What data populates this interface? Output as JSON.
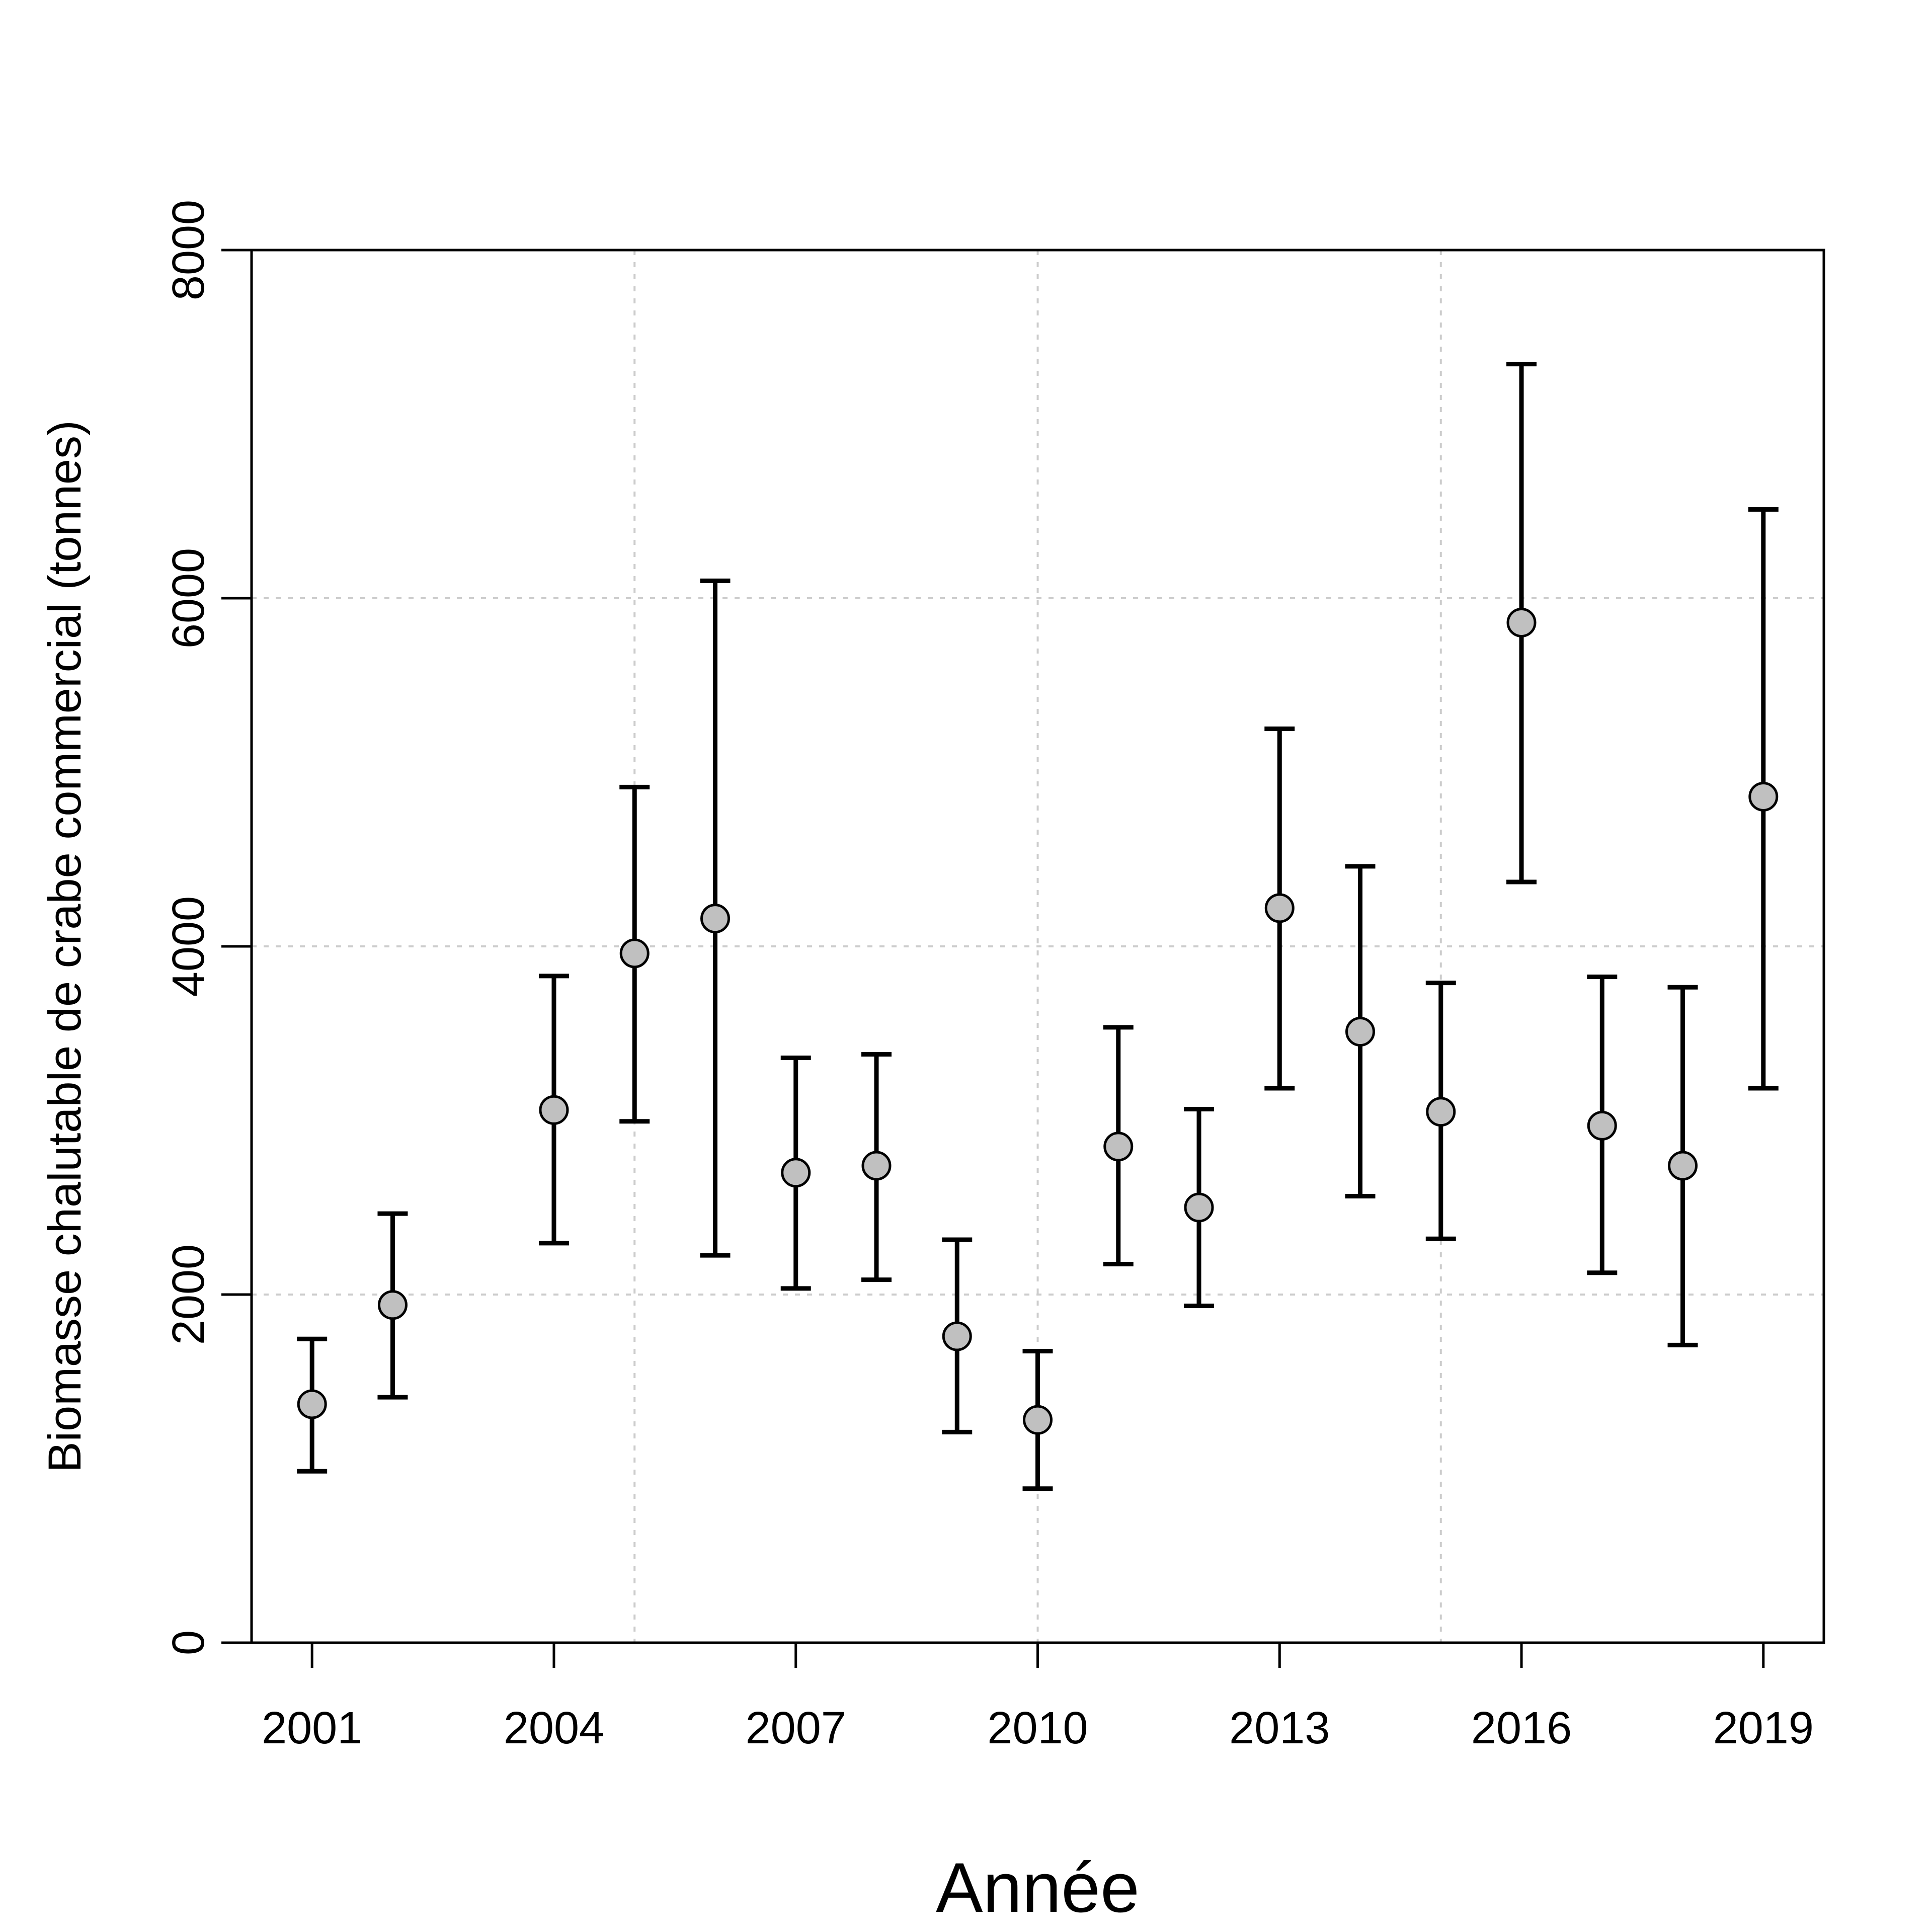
{
  "chart_data": {
    "type": "scatter",
    "xlabel": "Année",
    "ylabel": "Biomasse chalutable de crabe commercial (tonnes)",
    "x_ticks": [
      2001,
      2004,
      2007,
      2010,
      2013,
      2016,
      2019
    ],
    "y_ticks": [
      0,
      2000,
      4000,
      6000,
      8000
    ],
    "xlim": [
      2000.25,
      2019.75
    ],
    "ylim": [
      0,
      8000
    ],
    "grid": {
      "x": [
        2005,
        2010,
        2015
      ],
      "y": [
        2000,
        4000,
        6000
      ]
    },
    "series": [
      {
        "points": [
          {
            "x": 2001,
            "y": 1370,
            "low": 985,
            "high": 1745
          },
          {
            "x": 2002,
            "y": 1940,
            "low": 1410,
            "high": 2465
          },
          {
            "x": 2004,
            "y": 3060,
            "low": 2295,
            "high": 3830
          },
          {
            "x": 2005,
            "y": 3960,
            "low": 2995,
            "high": 4915
          },
          {
            "x": 2006,
            "y": 4160,
            "low": 2225,
            "high": 6100
          },
          {
            "x": 2007,
            "y": 2700,
            "low": 2035,
            "high": 3360
          },
          {
            "x": 2008,
            "y": 2740,
            "low": 2085,
            "high": 3380
          },
          {
            "x": 2009,
            "y": 1760,
            "low": 1210,
            "high": 2315
          },
          {
            "x": 2010,
            "y": 1280,
            "low": 885,
            "high": 1675
          },
          {
            "x": 2011,
            "y": 2850,
            "low": 2175,
            "high": 3535
          },
          {
            "x": 2012,
            "y": 2500,
            "low": 1935,
            "high": 3065
          },
          {
            "x": 2013,
            "y": 4220,
            "low": 3185,
            "high": 5250
          },
          {
            "x": 2014,
            "y": 3510,
            "low": 2565,
            "high": 4460
          },
          {
            "x": 2015,
            "y": 3050,
            "low": 2320,
            "high": 3790
          },
          {
            "x": 2016,
            "y": 5860,
            "low": 4370,
            "high": 7345
          },
          {
            "x": 2017,
            "y": 2970,
            "low": 2125,
            "high": 3825
          },
          {
            "x": 2018,
            "y": 2740,
            "low": 1710,
            "high": 3765
          },
          {
            "x": 2019,
            "y": 4860,
            "low": 3185,
            "high": 6510
          }
        ]
      }
    ]
  },
  "colors": {
    "point_fill": "#c0c0c0",
    "stroke": "#000000",
    "grid": "#cccccc",
    "background": "#ffffff"
  }
}
